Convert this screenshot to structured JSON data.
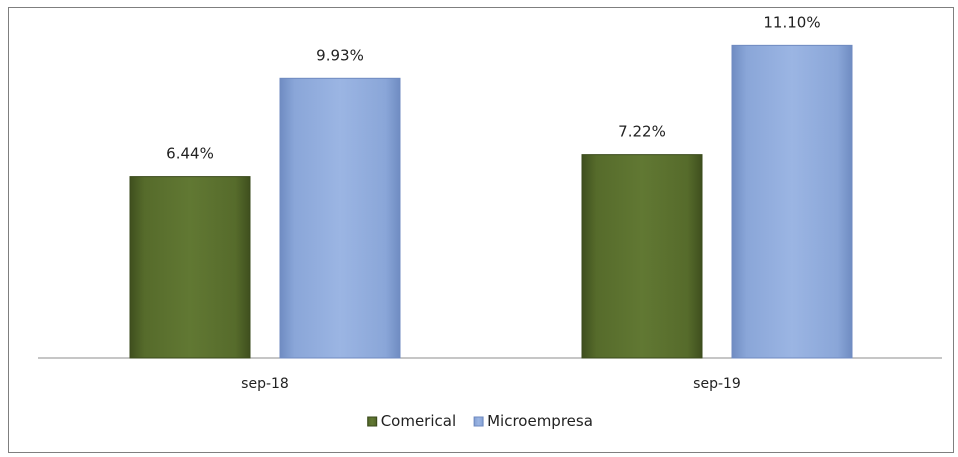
{
  "chart_data": {
    "type": "bar",
    "title": "",
    "categories": [
      "sep-18",
      "sep-19"
    ],
    "series": [
      {
        "name": "Comerical",
        "values": [
          6.44,
          7.22
        ],
        "labels": [
          "6.44%",
          "7.22%"
        ],
        "color": "#5a6e2e"
      },
      {
        "name": "Microempresa",
        "values": [
          9.93,
          11.1
        ],
        "labels": [
          "9.93%",
          "11.10%"
        ],
        "color": "#8eaadb"
      }
    ],
    "ylim": [
      0,
      12
    ],
    "grid": false,
    "legend": "bottom"
  }
}
